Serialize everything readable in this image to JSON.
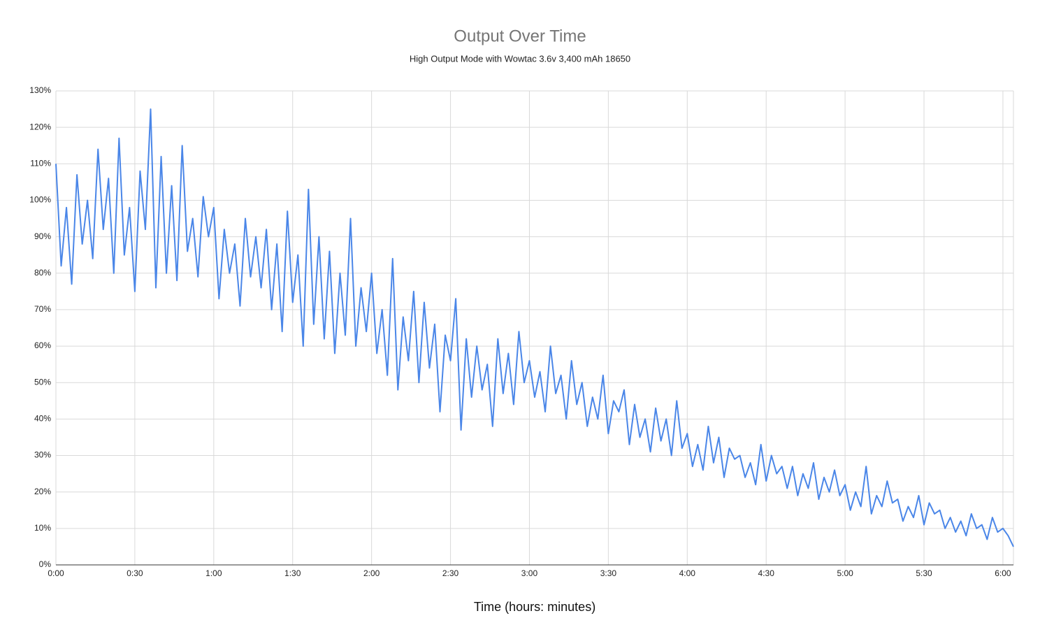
{
  "chart_data": {
    "type": "line",
    "title": "Output Over Time",
    "subtitle": "High Output Mode with Wowtac 3.6v 3,400 mAh 18650",
    "x_label": "Time (hours: minutes)",
    "color": "#4a86e8",
    "grid": true,
    "xlim": [
      0,
      364
    ],
    "ylim": [
      0,
      130
    ],
    "xticks": [
      {
        "value": 0,
        "label": "0:00"
      },
      {
        "value": 30,
        "label": "0:30"
      },
      {
        "value": 60,
        "label": "1:00"
      },
      {
        "value": 90,
        "label": "1:30"
      },
      {
        "value": 120,
        "label": "2:00"
      },
      {
        "value": 150,
        "label": "2:30"
      },
      {
        "value": 180,
        "label": "3:00"
      },
      {
        "value": 210,
        "label": "3:30"
      },
      {
        "value": 240,
        "label": "4:00"
      },
      {
        "value": 270,
        "label": "4:30"
      },
      {
        "value": 300,
        "label": "5:00"
      },
      {
        "value": 330,
        "label": "5:30"
      },
      {
        "value": 360,
        "label": "6:00"
      }
    ],
    "yticks": [
      {
        "value": 0,
        "label": "0%"
      },
      {
        "value": 10,
        "label": "10%"
      },
      {
        "value": 20,
        "label": "20%"
      },
      {
        "value": 30,
        "label": "30%"
      },
      {
        "value": 40,
        "label": "40%"
      },
      {
        "value": 50,
        "label": "50%"
      },
      {
        "value": 60,
        "label": "60%"
      },
      {
        "value": 70,
        "label": "70%"
      },
      {
        "value": 80,
        "label": "80%"
      },
      {
        "value": 90,
        "label": "90%"
      },
      {
        "value": 100,
        "label": "100%"
      },
      {
        "value": 110,
        "label": "110%"
      },
      {
        "value": 120,
        "label": "120%"
      },
      {
        "value": 130,
        "label": "130%"
      }
    ],
    "x": [
      0,
      2,
      4,
      6,
      8,
      10,
      12,
      14,
      16,
      18,
      20,
      22,
      24,
      26,
      28,
      30,
      32,
      34,
      36,
      38,
      40,
      42,
      44,
      46,
      48,
      50,
      52,
      54,
      56,
      58,
      60,
      62,
      64,
      66,
      68,
      70,
      72,
      74,
      76,
      78,
      80,
      82,
      84,
      86,
      88,
      90,
      92,
      94,
      96,
      98,
      100,
      102,
      104,
      106,
      108,
      110,
      112,
      114,
      116,
      118,
      120,
      122,
      124,
      126,
      128,
      130,
      132,
      134,
      136,
      138,
      140,
      142,
      144,
      146,
      148,
      150,
      152,
      154,
      156,
      158,
      160,
      162,
      164,
      166,
      168,
      170,
      172,
      174,
      176,
      178,
      180,
      182,
      184,
      186,
      188,
      190,
      192,
      194,
      196,
      198,
      200,
      202,
      204,
      206,
      208,
      210,
      212,
      214,
      216,
      218,
      220,
      222,
      224,
      226,
      228,
      230,
      232,
      234,
      236,
      238,
      240,
      242,
      244,
      246,
      248,
      250,
      252,
      254,
      256,
      258,
      260,
      262,
      264,
      266,
      268,
      270,
      272,
      274,
      276,
      278,
      280,
      282,
      284,
      286,
      288,
      290,
      292,
      294,
      296,
      298,
      300,
      302,
      304,
      306,
      308,
      310,
      312,
      314,
      316,
      318,
      320,
      322,
      324,
      326,
      328,
      330,
      332,
      334,
      336,
      338,
      340,
      342,
      344,
      346,
      348,
      350,
      352,
      354,
      356,
      358,
      360,
      362,
      364
    ],
    "values": [
      110,
      82,
      98,
      77,
      107,
      88,
      100,
      84,
      114,
      92,
      106,
      80,
      117,
      85,
      98,
      75,
      108,
      92,
      125,
      76,
      112,
      80,
      104,
      78,
      115,
      86,
      95,
      79,
      101,
      90,
      98,
      73,
      92,
      80,
      88,
      71,
      95,
      79,
      90,
      76,
      92,
      70,
      88,
      64,
      97,
      72,
      85,
      60,
      103,
      66,
      90,
      62,
      86,
      58,
      80,
      63,
      95,
      60,
      76,
      64,
      80,
      58,
      70,
      52,
      84,
      48,
      68,
      56,
      75,
      50,
      72,
      54,
      66,
      42,
      63,
      56,
      73,
      37,
      62,
      46,
      60,
      48,
      55,
      38,
      62,
      47,
      58,
      44,
      64,
      50,
      56,
      46,
      53,
      42,
      60,
      47,
      52,
      40,
      56,
      44,
      50,
      38,
      46,
      40,
      52,
      36,
      45,
      42,
      48,
      33,
      44,
      35,
      40,
      31,
      43,
      34,
      40,
      30,
      45,
      32,
      36,
      27,
      33,
      26,
      38,
      28,
      35,
      24,
      32,
      29,
      30,
      24,
      28,
      22,
      33,
      23,
      30,
      25,
      27,
      21,
      27,
      19,
      25,
      21,
      28,
      18,
      24,
      20,
      26,
      19,
      22,
      15,
      20,
      16,
      27,
      14,
      19,
      16,
      23,
      17,
      18,
      12,
      16,
      13,
      19,
      11,
      17,
      14,
      15,
      10,
      13,
      9,
      12,
      8,
      14,
      10,
      11,
      7,
      13,
      9,
      10,
      8,
      5
    ]
  }
}
